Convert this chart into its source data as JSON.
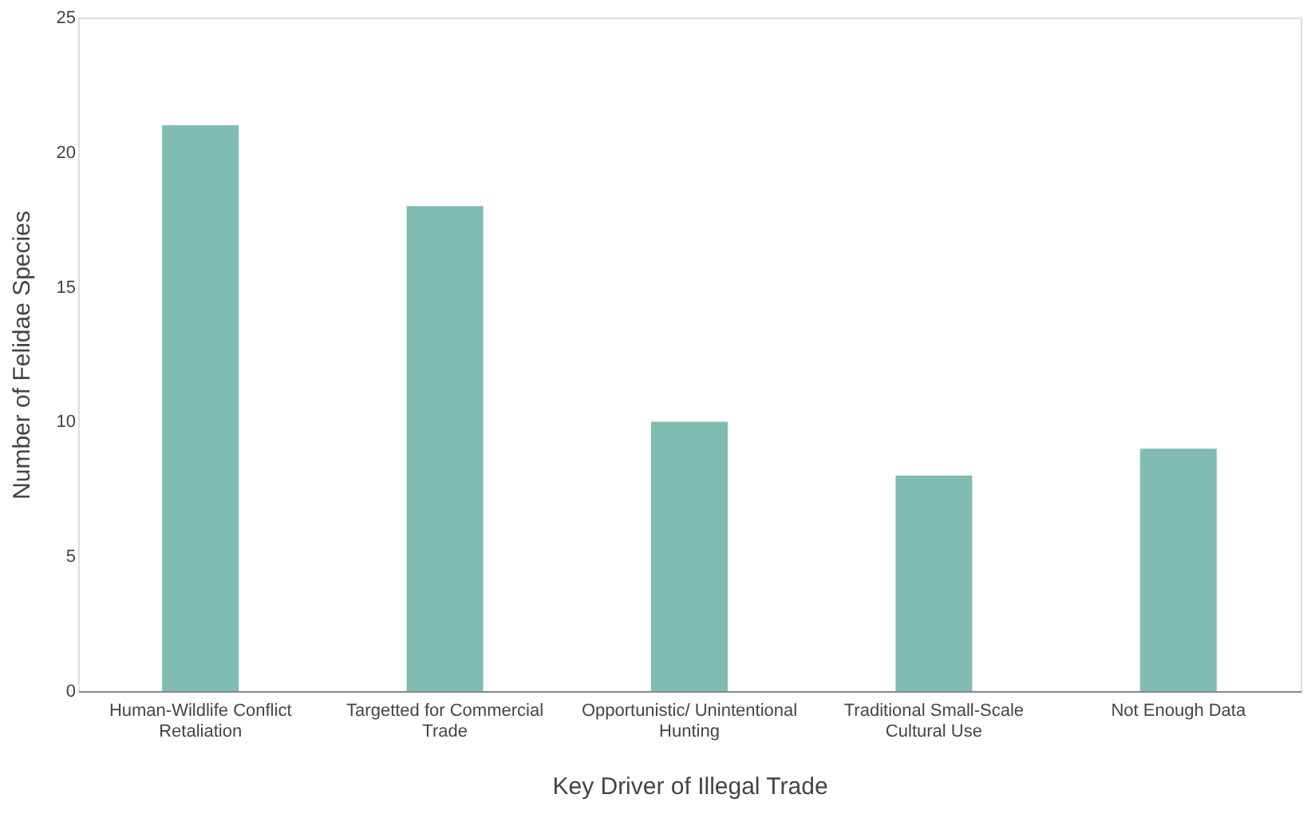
{
  "chart_data": {
    "type": "bar",
    "xlabel": "Key Driver of Illegal Trade",
    "ylabel": "Number of Felidae Species",
    "categories": [
      "Human-Wildlife Conflict Retaliation",
      "Targetted for Commercial Trade",
      "Opportunistic/ Unintentional Hunting",
      "Traditional Small-Scale Cultural Use",
      "Not Enough Data"
    ],
    "values": [
      21,
      18,
      10,
      8,
      9
    ],
    "color": "#80bcb0",
    "ylim": [
      0,
      25
    ],
    "yticks": [
      0,
      5,
      10,
      15,
      20,
      25
    ],
    "grid": false
  }
}
